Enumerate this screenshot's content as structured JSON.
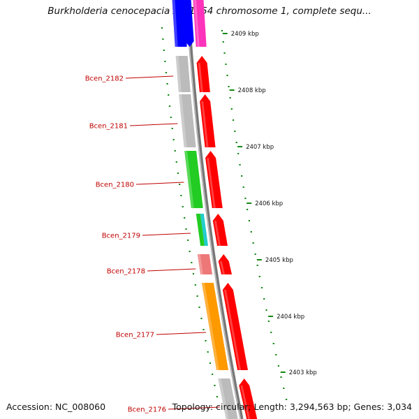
{
  "title": "Burkholderia cenocepacia AU 1054 chromosome 1, complete sequ...",
  "accession": "Accession: NC_008060",
  "topology": "Topology: circular; Length: 3,294,563 bp; Genes: 3,034",
  "colors": {
    "backbone": "#777777",
    "tick": "#118811",
    "label": "#c00000",
    "forward_strand": "#ff0000"
  },
  "kbp_markers": [
    "2409 kbp",
    "2408 kbp",
    "2407 kbp",
    "2406 kbp",
    "2405 kbp",
    "2404 kbp",
    "2403 kbp"
  ],
  "genes": [
    {
      "label": "",
      "cog_color": "#0000ff"
    },
    {
      "label": "Bcen_2182",
      "cog_color": "#bbbbbb"
    },
    {
      "label": "Bcen_2181",
      "cog_color": "#bbbbbb"
    },
    {
      "label": "Bcen_2180",
      "cog_color": "#22cc22"
    },
    {
      "label": "Bcen_2179",
      "cog_color": "#22cc22",
      "cog_color2": "#22cccc"
    },
    {
      "label": "Bcen_2178",
      "cog_color": "#ee7777"
    },
    {
      "label": "Bcen_2177",
      "cog_color": "#ff9900"
    },
    {
      "label": "Bcen_2176",
      "cog_color": "#bbbbbb"
    }
  ]
}
